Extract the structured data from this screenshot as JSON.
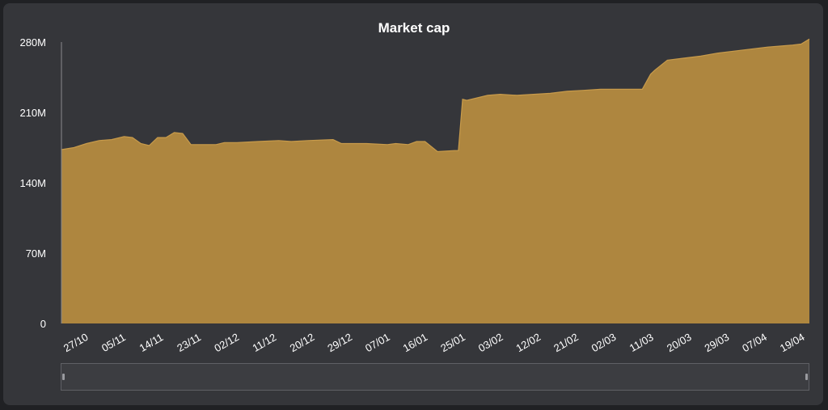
{
  "colors": {
    "background": "#35363a",
    "area_fill": "#ae863f",
    "area_line": "#c89b4b",
    "text": "#ffffff",
    "axis": "#8a8b8f"
  },
  "chart_data": {
    "type": "area",
    "title": "Market cap",
    "xlabel": "",
    "ylabel": "",
    "ylim": [
      0,
      280000000
    ],
    "y_ticks": [
      "0",
      "70M",
      "140M",
      "210M",
      "280M"
    ],
    "x_ticks": [
      "27/10",
      "05/11",
      "14/11",
      "23/11",
      "02/12",
      "11/12",
      "20/12",
      "29/12",
      "07/01",
      "16/01",
      "25/01",
      "03/02",
      "12/02",
      "21/02",
      "02/03",
      "11/03",
      "20/03",
      "29/03",
      "07/04",
      "19/04"
    ],
    "grid": false,
    "legend": "none",
    "series": [
      {
        "x": [
          "2020-10-24",
          "2020-10-27",
          "2020-10-30",
          "2020-11-02",
          "2020-11-05",
          "2020-11-08",
          "2020-11-10",
          "2020-11-12",
          "2020-11-14",
          "2020-11-16",
          "2020-11-18",
          "2020-11-20",
          "2020-11-22",
          "2020-11-24",
          "2020-11-25",
          "2020-11-30",
          "2020-12-02",
          "2020-12-05",
          "2020-12-10",
          "2020-12-15",
          "2020-12-18",
          "2020-12-22",
          "2020-12-28",
          "2020-12-30",
          "2021-01-05",
          "2021-01-10",
          "2021-01-12",
          "2021-01-15",
          "2021-01-17",
          "2021-01-19",
          "2021-01-22",
          "2021-01-26",
          "2021-01-27",
          "2021-01-28",
          "2021-01-29",
          "2021-02-03",
          "2021-02-06",
          "2021-02-10",
          "2021-02-14",
          "2021-02-18",
          "2021-02-22",
          "2021-02-26",
          "2021-03-02",
          "2021-03-06",
          "2021-03-10",
          "2021-03-12",
          "2021-03-14",
          "2021-03-15",
          "2021-03-18",
          "2021-03-22",
          "2021-03-26",
          "2021-03-30",
          "2021-04-03",
          "2021-04-07",
          "2021-04-11",
          "2021-04-14",
          "2021-04-17",
          "2021-04-19",
          "2021-04-21"
        ],
        "values": [
          173000000,
          175000000,
          179000000,
          182000000,
          183000000,
          186000000,
          185000000,
          179000000,
          177000000,
          185000000,
          185000000,
          190000000,
          189000000,
          178000000,
          178000000,
          178000000,
          180000000,
          180000000,
          181000000,
          182000000,
          181000000,
          182000000,
          183000000,
          179000000,
          179000000,
          178000000,
          179000000,
          178000000,
          181000000,
          181000000,
          171000000,
          172000000,
          172000000,
          223000000,
          222000000,
          227000000,
          228000000,
          227000000,
          228000000,
          229000000,
          231000000,
          232000000,
          233000000,
          233000000,
          233000000,
          233000000,
          248000000,
          252000000,
          262000000,
          264000000,
          266000000,
          269000000,
          271000000,
          273000000,
          275000000,
          276000000,
          277000000,
          278000000,
          283000000
        ]
      }
    ]
  }
}
